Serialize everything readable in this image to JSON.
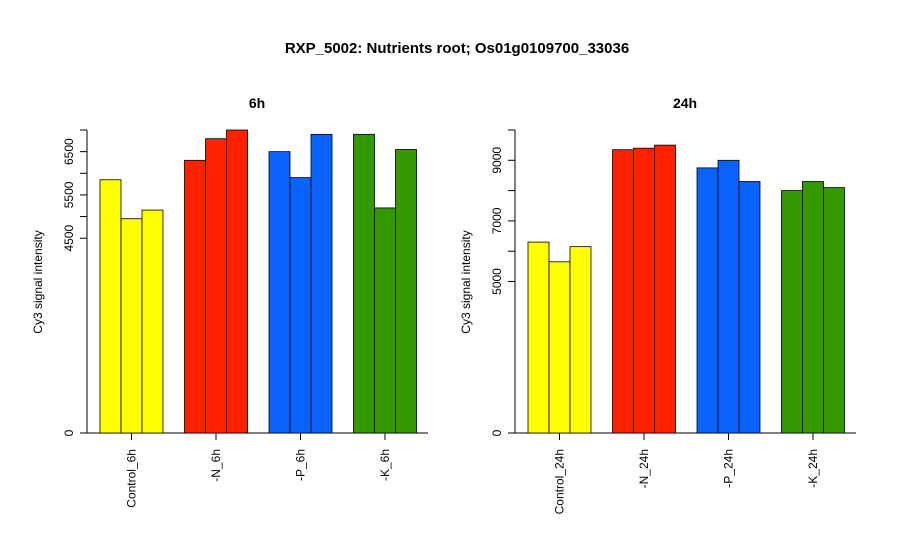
{
  "title": "RXP_5002: Nutrients root; Os01g0109700_33036",
  "chart_data": [
    {
      "type": "bar",
      "title": "6h",
      "ylabel": "Cy3 signal intensity",
      "ylim": [
        0,
        7000
      ],
      "yticks": [
        0,
        4500,
        5500,
        6500
      ],
      "categories": [
        "Control_6h",
        "-N_6h",
        "-P_6h",
        "-K_6h"
      ],
      "colors": [
        "#ffff00",
        "#ff2200",
        "#0a63ff",
        "#339900"
      ],
      "values": [
        [
          5850,
          4950,
          5150
        ],
        [
          6300,
          6800,
          7000
        ],
        [
          6500,
          5900,
          6900
        ],
        [
          6900,
          5200,
          6550
        ]
      ]
    },
    {
      "type": "bar",
      "title": "24h",
      "ylabel": "Cy3 signal intensity",
      "ylim": [
        0,
        10000
      ],
      "yticks": [
        0,
        5000,
        7000,
        9000
      ],
      "categories": [
        "Control_24h",
        "-N_24h",
        "-P_24h",
        "-K_24h"
      ],
      "colors": [
        "#ffff00",
        "#ff2200",
        "#0a63ff",
        "#339900"
      ],
      "values": [
        [
          6300,
          5650,
          6150
        ],
        [
          9350,
          9400,
          9500
        ],
        [
          8750,
          9000,
          8300
        ],
        [
          8000,
          8300,
          8100
        ]
      ]
    }
  ]
}
